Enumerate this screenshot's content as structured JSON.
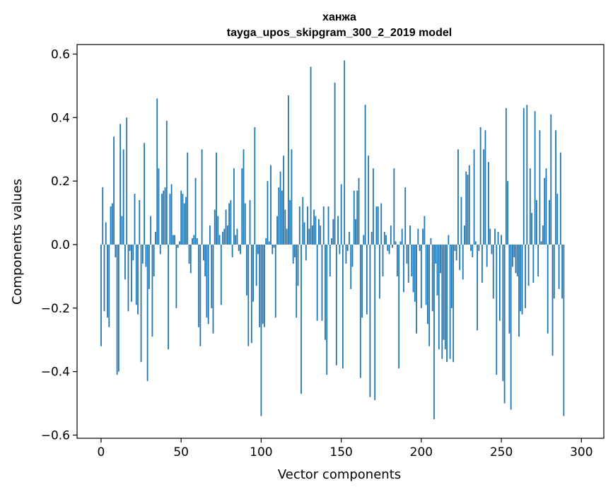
{
  "chart_data": {
    "type": "bar",
    "title": "ханжа",
    "subtitle": "tayga_upos_skipgram_300_2_2019 model",
    "xlabel": "Vector components",
    "ylabel": "Components values",
    "xlim": [
      -15,
      314
    ],
    "ylim": [
      -0.61,
      0.63
    ],
    "xticks": [
      0,
      50,
      100,
      150,
      200,
      250,
      300
    ],
    "xtick_labels": [
      "0",
      "50",
      "100",
      "150",
      "200",
      "250",
      "300"
    ],
    "yticks": [
      -0.6,
      -0.4,
      -0.2,
      0.0,
      0.2,
      0.4,
      0.6
    ],
    "ytick_labels": [
      "−0.6",
      "−0.4",
      "−0.2",
      "0.0",
      "0.2",
      "0.4",
      "0.6"
    ],
    "grid": false,
    "bar_color": "#1f77b4",
    "values": [
      -0.32,
      0.18,
      -0.21,
      0.07,
      -0.23,
      -0.26,
      0.12,
      0.13,
      0.34,
      -0.04,
      -0.41,
      -0.4,
      0.38,
      0.09,
      0.3,
      -0.11,
      0.4,
      -0.21,
      -0.02,
      -0.18,
      -0.05,
      0.16,
      -0.19,
      -0.22,
      0.14,
      -0.37,
      -0.06,
      0.32,
      -0.07,
      -0.43,
      -0.14,
      0.09,
      -0.29,
      -0.1,
      0.04,
      0.46,
      0.24,
      -0.03,
      0.16,
      0.17,
      0.18,
      0.39,
      -0.33,
      0.16,
      0.19,
      0.03,
      0.03,
      -0.2,
      -0.01,
      0.01,
      0.17,
      0.16,
      0.13,
      0.15,
      0.29,
      -0.06,
      -0.09,
      0.02,
      0.03,
      0.21,
      0.02,
      -0.26,
      -0.32,
      0.3,
      -0.05,
      -0.1,
      -0.23,
      -0.25,
      0.06,
      -0.2,
      -0.28,
      0.11,
      0.29,
      0.09,
      0.03,
      -0.19,
      0.04,
      0.05,
      0.11,
      0.06,
      0.13,
      0.14,
      -0.04,
      0.24,
      0.03,
      0.05,
      -0.02,
      -0.03,
      0.24,
      0.3,
      0.13,
      -0.16,
      -0.32,
      0.14,
      -0.31,
      -0.18,
      0.37,
      -0.13,
      -0.03,
      -0.26,
      -0.54,
      -0.25,
      -0.26,
      0.02,
      0.2,
      0.01,
      0.25,
      -0.03,
      -0.01,
      -0.23,
      0.09,
      0.18,
      0.23,
      0.17,
      0.28,
      0.11,
      0.05,
      0.47,
      0.14,
      0.3,
      -0.06,
      -0.04,
      -0.23,
      -0.13,
      0.12,
      -0.47,
      0.15,
      0.07,
      -0.05,
      0.12,
      0.05,
      0.56,
      0.06,
      0.11,
      0.09,
      -0.24,
      0.08,
      0.06,
      -0.24,
      0.12,
      -0.3,
      -0.41,
      0.12,
      -0.1,
      0.02,
      0.08,
      0.51,
      -0.38,
      0.09,
      -0.03,
      0.19,
      -0.39,
      0.58,
      -0.06,
      -0.02,
      0.04,
      -0.14,
      -0.07,
      0.17,
      0.08,
      0.17,
      0.21,
      -0.42,
      -0.23,
      0.03,
      0.44,
      -0.22,
      0.28,
      -0.48,
      0.04,
      0.24,
      -0.49,
      0.12,
      0.12,
      -0.17,
      0.13,
      -0.1,
      0.04,
      0.03,
      -0.02,
      -0.03,
      0.06,
      -0.01,
      0.24,
      0.01,
      -0.1,
      -0.39,
      0.01,
      0.05,
      -0.15,
      0.18,
      -0.06,
      -0.12,
      0.06,
      -0.1,
      -0.15,
      -0.18,
      -0.28,
      0.05,
      -0.02,
      -0.2,
      0.05,
      0.09,
      -0.19,
      -0.25,
      -0.32,
      0.02,
      -0.21,
      -0.55,
      -0.06,
      -0.16,
      -0.33,
      -0.09,
      -0.36,
      -0.3,
      -0.33,
      -0.37,
      0.03,
      -0.36,
      -0.2,
      -0.37,
      -0.02,
      -0.05,
      0.3,
      -0.08,
      0.15,
      -0.11,
      0.06,
      0.23,
      0.22,
      0.25,
      -0.02,
      -0.04,
      0.3,
      0.01,
      -0.27,
      -0.02,
      0.37,
      -0.12,
      0.3,
      0.36,
      -0.07,
      0.26,
      0.05,
      -0.03,
      -0.17,
      0.05,
      -0.41,
      0.04,
      -0.24,
      0.03,
      -0.43,
      -0.5,
      0.43,
      0.2,
      -0.28,
      -0.52,
      -0.07,
      -0.04,
      -0.09,
      -0.1,
      -0.29,
      -0.21,
      -0.22,
      0.43,
      -0.2,
      0.44,
      -0.13,
      0.24,
      0.1,
      -0.12,
      0.42,
      0.14,
      -0.1,
      0.36,
      0.01,
      0.06,
      0.21,
      0.24,
      -0.28,
      0.14,
      0.41,
      -0.35,
      -0.17,
      0.36,
      0.16,
      -0.14,
      0.29,
      -0.17,
      -0.54
    ]
  }
}
